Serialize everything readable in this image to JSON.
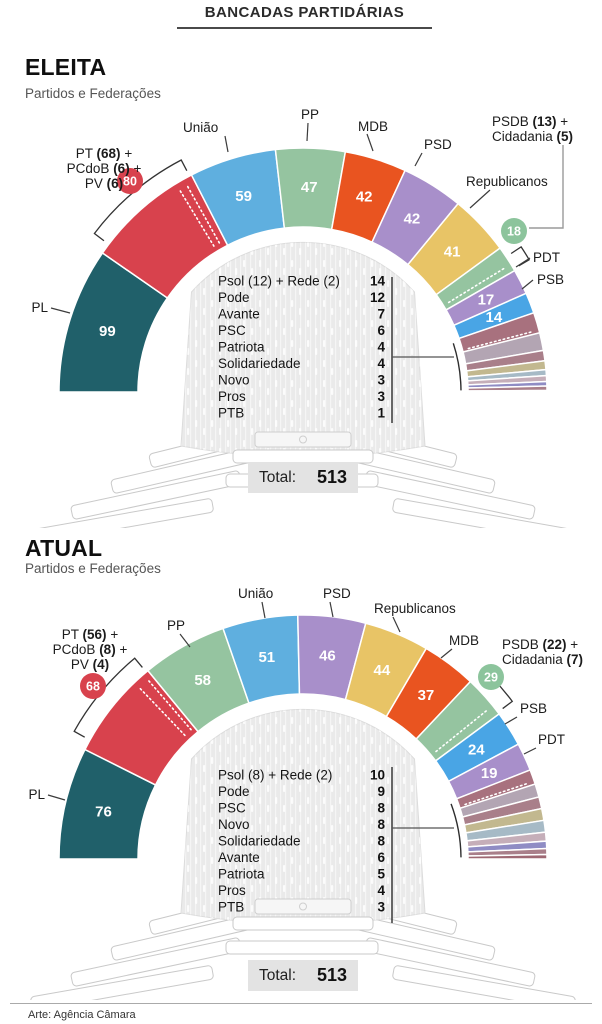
{
  "header": {
    "title": "BANCADAS PARTIDÁRIAS"
  },
  "footer": {
    "credit": "Arte: Agência Câmara"
  },
  "charts": [
    {
      "id": "eleita",
      "heading": "ELEITA",
      "subheading": "Partidos e Federações",
      "total_label": "Total:",
      "total": "513",
      "chart_data": {
        "type": "hemicycle-parliament",
        "total_seats": 513,
        "segments": [
          {
            "party": "PL",
            "seats": 99,
            "color": "#20606a",
            "show_value": true,
            "outer_label": "PL"
          },
          {
            "party": "PT + PCdoB + PV",
            "seats": 80,
            "color": "#d8424d",
            "sub_seats": [
              68,
              6,
              6
            ],
            "federation_key": "PT",
            "label_lines": [
              "PT (68) +",
              "PCdoB (6) +",
              "PV (6)"
            ],
            "badge": "80",
            "badge_color": "#d8424d"
          },
          {
            "party": "União",
            "seats": 59,
            "color": "#5fafdf",
            "show_value": true,
            "outer_label": "União"
          },
          {
            "party": "PP",
            "seats": 47,
            "color": "#95c4a0",
            "show_value": true,
            "outer_label": "PP"
          },
          {
            "party": "MDB",
            "seats": 42,
            "color": "#e95420",
            "show_value": true,
            "outer_label": "MDB"
          },
          {
            "party": "PSD",
            "seats": 42,
            "color": "#a88fca",
            "show_value": true,
            "outer_label": "PSD"
          },
          {
            "party": "Republicanos",
            "seats": 41,
            "color": "#e8c466",
            "show_value": true,
            "outer_label": "Republicanos"
          },
          {
            "party": "PSDB + Cidadania",
            "seats": 18,
            "color": "#95c4a0",
            "sub_seats": [
              13,
              5
            ],
            "federation_key": "PSDB",
            "label_lines": [
              "PSDB (13) +",
              "Cidadania (5)"
            ],
            "badge": "18",
            "badge_color": "#8cc49c"
          },
          {
            "party": "PDT",
            "seats": 17,
            "color": "#a88fca",
            "show_value": true,
            "outer_label": "PDT"
          },
          {
            "party": "PSB",
            "seats": 14,
            "color": "#49a5e5",
            "show_value": true,
            "outer_label": "PSB"
          },
          {
            "party": "Psol + Rede",
            "seats": 14,
            "color": "#a8717e",
            "sub_seats": [
              12,
              2
            ],
            "small_group": true
          },
          {
            "party": "Pode",
            "seats": 12,
            "color": "#b3a5b3",
            "small_group": true
          },
          {
            "party": "Avante",
            "seats": 7,
            "color": "#a97f8a",
            "small_group": true
          },
          {
            "party": "PSC",
            "seats": 6,
            "color": "#c2b88f",
            "small_group": true
          },
          {
            "party": "Patriota",
            "seats": 4,
            "color": "#a6bac6",
            "small_group": true
          },
          {
            "party": "Solidariedade",
            "seats": 4,
            "color": "#c5aeb9",
            "small_group": true
          },
          {
            "party": "Novo",
            "seats": 3,
            "color": "#8f8cc4",
            "small_group": true
          },
          {
            "party": "Pros",
            "seats": 3,
            "color": "#a97f8a",
            "small_group": true
          },
          {
            "party": "PTB",
            "seats": 1,
            "color": "#9e6873",
            "small_group": true
          }
        ],
        "center_list": [
          {
            "party": "Psol (12) + Rede (2)",
            "seats": "14"
          },
          {
            "party": "Pode",
            "seats": "12"
          },
          {
            "party": "Avante",
            "seats": "7"
          },
          {
            "party": "PSC",
            "seats": "6"
          },
          {
            "party": "Patriota",
            "seats": "4"
          },
          {
            "party": "Solidariedade",
            "seats": "4"
          },
          {
            "party": "Novo",
            "seats": "3"
          },
          {
            "party": "Pros",
            "seats": "3"
          },
          {
            "party": "PTB",
            "seats": "1"
          }
        ]
      }
    },
    {
      "id": "atual",
      "heading": "ATUAL",
      "subheading": "Partidos e Federações",
      "total_label": "Total:",
      "total": "513",
      "chart_data": {
        "type": "hemicycle-parliament",
        "total_seats": 513,
        "segments": [
          {
            "party": "PL",
            "seats": 76,
            "color": "#20606a",
            "show_value": true,
            "outer_label": "PL"
          },
          {
            "party": "PT + PCdoB + PV",
            "seats": 68,
            "color": "#d8424d",
            "sub_seats": [
              56,
              8,
              4
            ],
            "federation_key": "PT",
            "label_lines": [
              "PT (56) +",
              "PCdoB (8) +",
              "PV (4)"
            ],
            "badge": "68",
            "badge_color": "#d8424d"
          },
          {
            "party": "PP",
            "seats": 58,
            "color": "#95c4a0",
            "show_value": true,
            "outer_label": "PP"
          },
          {
            "party": "União",
            "seats": 51,
            "color": "#5fafdf",
            "show_value": true,
            "outer_label": "União"
          },
          {
            "party": "PSD",
            "seats": 46,
            "color": "#a88fca",
            "show_value": true,
            "outer_label": "PSD"
          },
          {
            "party": "Republicanos",
            "seats": 44,
            "color": "#e8c466",
            "show_value": true,
            "outer_label": "Republicanos"
          },
          {
            "party": "MDB",
            "seats": 37,
            "color": "#e95420",
            "show_value": true,
            "outer_label": "MDB"
          },
          {
            "party": "PSDB + Cidadania",
            "seats": 29,
            "color": "#95c4a0",
            "sub_seats": [
              22,
              7
            ],
            "federation_key": "PSDB",
            "label_lines": [
              "PSDB (22) +",
              "Cidadania (7)"
            ],
            "badge": "29",
            "badge_color": "#8cc49c"
          },
          {
            "party": "PSB",
            "seats": 24,
            "color": "#49a5e5",
            "show_value": true,
            "outer_label": "PSB"
          },
          {
            "party": "PDT",
            "seats": 19,
            "color": "#a88fca",
            "show_value": true,
            "outer_label": "PDT"
          },
          {
            "party": "Psol + Rede",
            "seats": 10,
            "color": "#a8717e",
            "sub_seats": [
              8,
              2
            ],
            "small_group": true
          },
          {
            "party": "Pode",
            "seats": 9,
            "color": "#b3a5b3",
            "small_group": true
          },
          {
            "party": "PSC",
            "seats": 8,
            "color": "#a97f8a",
            "small_group": true
          },
          {
            "party": "Novo",
            "seats": 8,
            "color": "#c2b88f",
            "small_group": true
          },
          {
            "party": "Solidariedade",
            "seats": 8,
            "color": "#a6bac6",
            "small_group": true
          },
          {
            "party": "Avante",
            "seats": 6,
            "color": "#c5aeb9",
            "small_group": true
          },
          {
            "party": "Patriota",
            "seats": 5,
            "color": "#8f8cc4",
            "small_group": true
          },
          {
            "party": "Pros",
            "seats": 4,
            "color": "#a97f8a",
            "small_group": true
          },
          {
            "party": "PTB",
            "seats": 3,
            "color": "#9e6873",
            "small_group": true
          }
        ],
        "center_list": [
          {
            "party": "Psol (8) + Rede (2)",
            "seats": "10"
          },
          {
            "party": "Pode",
            "seats": "9"
          },
          {
            "party": "PSC",
            "seats": "8"
          },
          {
            "party": "Novo",
            "seats": "8"
          },
          {
            "party": "Solidariedade",
            "seats": "8"
          },
          {
            "party": "Avante",
            "seats": "6"
          },
          {
            "party": "Patriota",
            "seats": "5"
          },
          {
            "party": "Pros",
            "seats": "4"
          },
          {
            "party": "PTB",
            "seats": "3"
          }
        ]
      }
    }
  ]
}
